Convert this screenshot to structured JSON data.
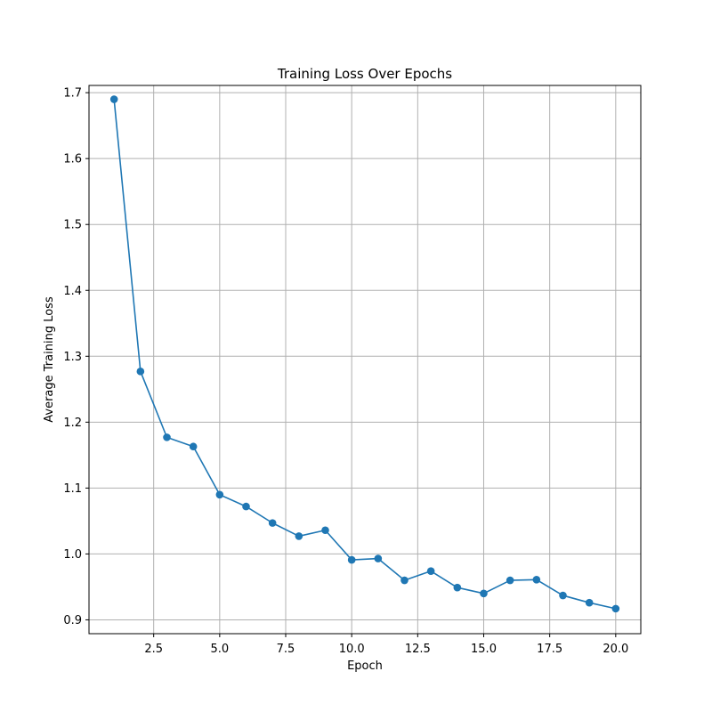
{
  "chart_data": {
    "type": "line",
    "title": "Training Loss Over Epochs",
    "xlabel": "Epoch",
    "ylabel": "Average Training Loss",
    "xlim": [
      0.05,
      20.95
    ],
    "ylim": [
      0.879,
      1.711
    ],
    "xticks": [
      2.5,
      5.0,
      7.5,
      10.0,
      12.5,
      15.0,
      17.5,
      20.0
    ],
    "xtick_labels": [
      "2.5",
      "5.0",
      "7.5",
      "10.0",
      "12.5",
      "15.0",
      "17.5",
      "20.0"
    ],
    "yticks": [
      0.9,
      1.0,
      1.1,
      1.2,
      1.3,
      1.4,
      1.5,
      1.6,
      1.7
    ],
    "ytick_labels": [
      "0.9",
      "1.0",
      "1.1",
      "1.2",
      "1.3",
      "1.4",
      "1.5",
      "1.6",
      "1.7"
    ],
    "grid": true,
    "series": [
      {
        "color": "#1f77b4",
        "marker": "circle",
        "x": [
          1,
          2,
          3,
          4,
          5,
          6,
          7,
          8,
          9,
          10,
          11,
          12,
          13,
          14,
          15,
          16,
          17,
          18,
          19,
          20
        ],
        "y": [
          1.69,
          1.277,
          1.177,
          1.163,
          1.09,
          1.072,
          1.047,
          1.027,
          1.036,
          0.991,
          0.993,
          0.96,
          0.974,
          0.949,
          0.94,
          0.96,
          0.961,
          0.937,
          0.926,
          0.917
        ]
      }
    ]
  }
}
